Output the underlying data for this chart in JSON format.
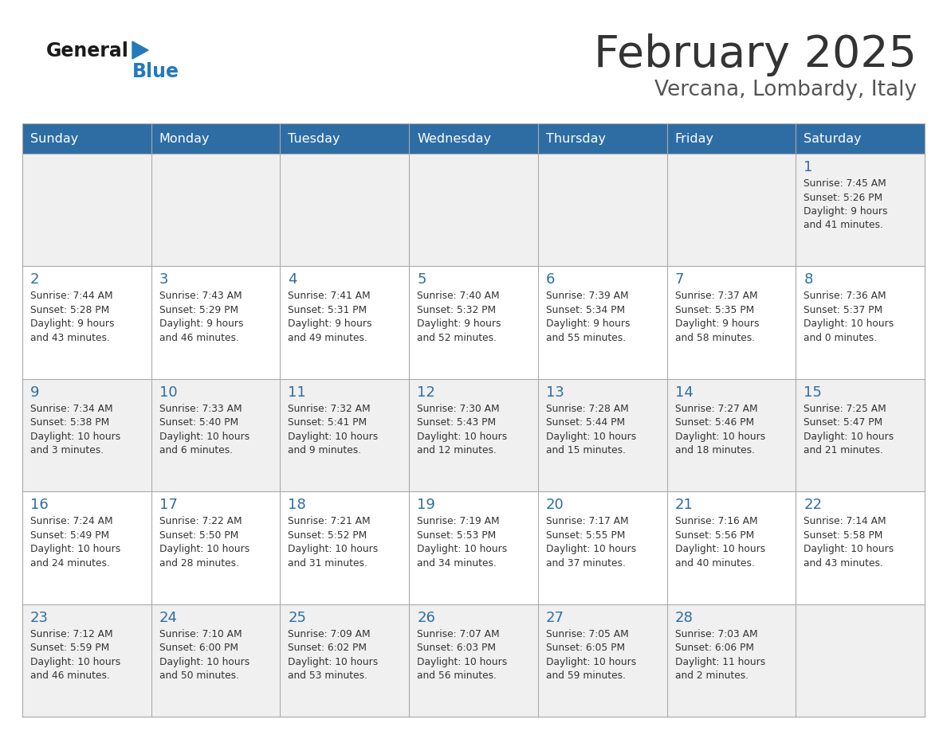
{
  "title": "February 2025",
  "subtitle": "Vercana, Lombardy, Italy",
  "header_bg": "#2E6DA4",
  "header_text": "#FFFFFF",
  "cell_bg_odd": "#F0F0F0",
  "cell_bg_even": "#FFFFFF",
  "day_number_color": "#2E6DA4",
  "cell_text_color": "#333333",
  "border_color": "#AAAAAA",
  "title_color": "#333333",
  "subtitle_color": "#555555",
  "logo_general_color": "#1A1A1A",
  "logo_blue_color": "#2479BD",
  "days_of_week": [
    "Sunday",
    "Monday",
    "Tuesday",
    "Wednesday",
    "Thursday",
    "Friday",
    "Saturday"
  ],
  "calendar_data": [
    [
      null,
      null,
      null,
      null,
      null,
      null,
      {
        "day": "1",
        "sunrise": "7:45 AM",
        "sunset": "5:26 PM",
        "daylight": "9 hours\nand 41 minutes."
      }
    ],
    [
      {
        "day": "2",
        "sunrise": "7:44 AM",
        "sunset": "5:28 PM",
        "daylight": "9 hours\nand 43 minutes."
      },
      {
        "day": "3",
        "sunrise": "7:43 AM",
        "sunset": "5:29 PM",
        "daylight": "9 hours\nand 46 minutes."
      },
      {
        "day": "4",
        "sunrise": "7:41 AM",
        "sunset": "5:31 PM",
        "daylight": "9 hours\nand 49 minutes."
      },
      {
        "day": "5",
        "sunrise": "7:40 AM",
        "sunset": "5:32 PM",
        "daylight": "9 hours\nand 52 minutes."
      },
      {
        "day": "6",
        "sunrise": "7:39 AM",
        "sunset": "5:34 PM",
        "daylight": "9 hours\nand 55 minutes."
      },
      {
        "day": "7",
        "sunrise": "7:37 AM",
        "sunset": "5:35 PM",
        "daylight": "9 hours\nand 58 minutes."
      },
      {
        "day": "8",
        "sunrise": "7:36 AM",
        "sunset": "5:37 PM",
        "daylight": "10 hours\nand 0 minutes."
      }
    ],
    [
      {
        "day": "9",
        "sunrise": "7:34 AM",
        "sunset": "5:38 PM",
        "daylight": "10 hours\nand 3 minutes."
      },
      {
        "day": "10",
        "sunrise": "7:33 AM",
        "sunset": "5:40 PM",
        "daylight": "10 hours\nand 6 minutes."
      },
      {
        "day": "11",
        "sunrise": "7:32 AM",
        "sunset": "5:41 PM",
        "daylight": "10 hours\nand 9 minutes."
      },
      {
        "day": "12",
        "sunrise": "7:30 AM",
        "sunset": "5:43 PM",
        "daylight": "10 hours\nand 12 minutes."
      },
      {
        "day": "13",
        "sunrise": "7:28 AM",
        "sunset": "5:44 PM",
        "daylight": "10 hours\nand 15 minutes."
      },
      {
        "day": "14",
        "sunrise": "7:27 AM",
        "sunset": "5:46 PM",
        "daylight": "10 hours\nand 18 minutes."
      },
      {
        "day": "15",
        "sunrise": "7:25 AM",
        "sunset": "5:47 PM",
        "daylight": "10 hours\nand 21 minutes."
      }
    ],
    [
      {
        "day": "16",
        "sunrise": "7:24 AM",
        "sunset": "5:49 PM",
        "daylight": "10 hours\nand 24 minutes."
      },
      {
        "day": "17",
        "sunrise": "7:22 AM",
        "sunset": "5:50 PM",
        "daylight": "10 hours\nand 28 minutes."
      },
      {
        "day": "18",
        "sunrise": "7:21 AM",
        "sunset": "5:52 PM",
        "daylight": "10 hours\nand 31 minutes."
      },
      {
        "day": "19",
        "sunrise": "7:19 AM",
        "sunset": "5:53 PM",
        "daylight": "10 hours\nand 34 minutes."
      },
      {
        "day": "20",
        "sunrise": "7:17 AM",
        "sunset": "5:55 PM",
        "daylight": "10 hours\nand 37 minutes."
      },
      {
        "day": "21",
        "sunrise": "7:16 AM",
        "sunset": "5:56 PM",
        "daylight": "10 hours\nand 40 minutes."
      },
      {
        "day": "22",
        "sunrise": "7:14 AM",
        "sunset": "5:58 PM",
        "daylight": "10 hours\nand 43 minutes."
      }
    ],
    [
      {
        "day": "23",
        "sunrise": "7:12 AM",
        "sunset": "5:59 PM",
        "daylight": "10 hours\nand 46 minutes."
      },
      {
        "day": "24",
        "sunrise": "7:10 AM",
        "sunset": "6:00 PM",
        "daylight": "10 hours\nand 50 minutes."
      },
      {
        "day": "25",
        "sunrise": "7:09 AM",
        "sunset": "6:02 PM",
        "daylight": "10 hours\nand 53 minutes."
      },
      {
        "day": "26",
        "sunrise": "7:07 AM",
        "sunset": "6:03 PM",
        "daylight": "10 hours\nand 56 minutes."
      },
      {
        "day": "27",
        "sunrise": "7:05 AM",
        "sunset": "6:05 PM",
        "daylight": "10 hours\nand 59 minutes."
      },
      {
        "day": "28",
        "sunrise": "7:03 AM",
        "sunset": "6:06 PM",
        "daylight": "11 hours\nand 2 minutes."
      },
      null
    ]
  ]
}
